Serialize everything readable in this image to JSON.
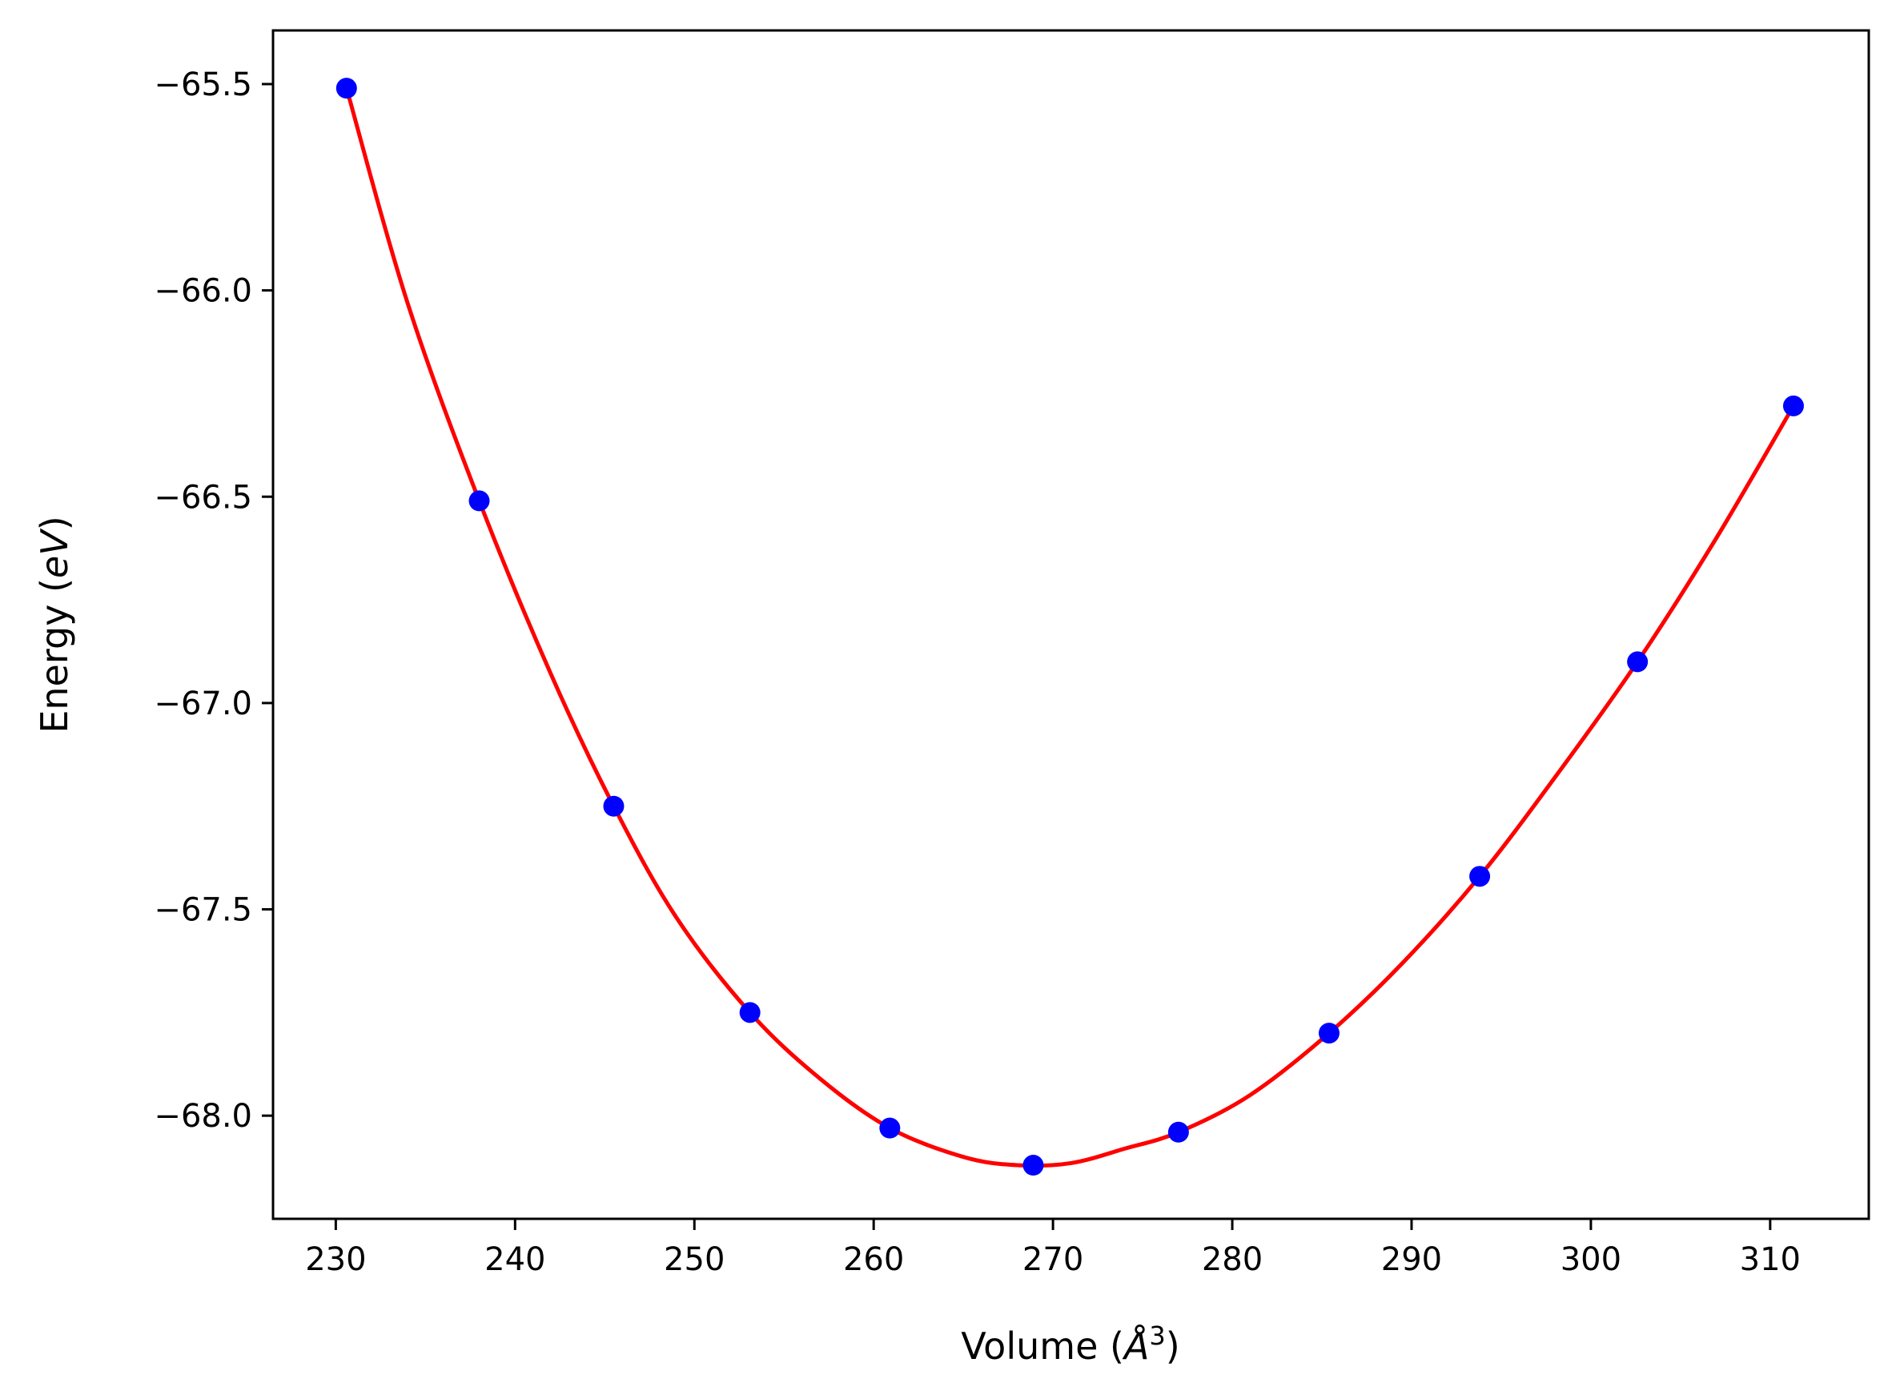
{
  "chart_data": {
    "type": "scatter",
    "xlabel": "Volume (Å^3)",
    "xlabel_parts": {
      "prefix": "Volume (",
      "symbol": "Å",
      "exponent": "3",
      "suffix": ")"
    },
    "ylabel": "Energy (eV)",
    "ylabel_parts": {
      "prefix": "Energy (",
      "symbol": "eV",
      "suffix": ")"
    },
    "xlim": [
      226.5,
      315.5
    ],
    "ylim": [
      -68.25,
      -65.37
    ],
    "xticks": [
      230,
      240,
      250,
      260,
      270,
      280,
      290,
      300,
      310
    ],
    "yticks": [
      -65.5,
      -66.0,
      -66.5,
      -67.0,
      -67.5,
      -68.0
    ],
    "ytick_labels": [
      "−65.5",
      "−66.0",
      "−66.5",
      "−67.0",
      "−67.5",
      "−68.0"
    ],
    "grid": false,
    "series": [
      {
        "kind": "points",
        "color": "#0000ff",
        "x": [
          230.6,
          238.0,
          245.5,
          253.1,
          260.9,
          268.9,
          277.0,
          285.4,
          293.8,
          302.6,
          311.3
        ],
        "y": [
          -65.51,
          -66.51,
          -67.25,
          -67.75,
          -68.03,
          -68.12,
          -68.04,
          -67.8,
          -67.42,
          -66.9,
          -66.28
        ]
      },
      {
        "kind": "fit-curve",
        "color": "#ff0000",
        "x": [
          230.6,
          234.0,
          238.0,
          242.0,
          245.5,
          249.0,
          253.1,
          257.0,
          260.9,
          265.0,
          268.0,
          271.0,
          274.0,
          277.0,
          281.0,
          285.4,
          289.5,
          293.8,
          298.0,
          302.6,
          307.0,
          311.3
        ],
        "y": [
          -65.51,
          -66.03,
          -66.51,
          -66.93,
          -67.25,
          -67.52,
          -67.75,
          -67.91,
          -68.03,
          -68.1,
          -68.12,
          -68.115,
          -68.08,
          -68.04,
          -67.95,
          -67.8,
          -67.63,
          -67.42,
          -67.18,
          -66.9,
          -66.6,
          -66.28
        ]
      }
    ]
  }
}
